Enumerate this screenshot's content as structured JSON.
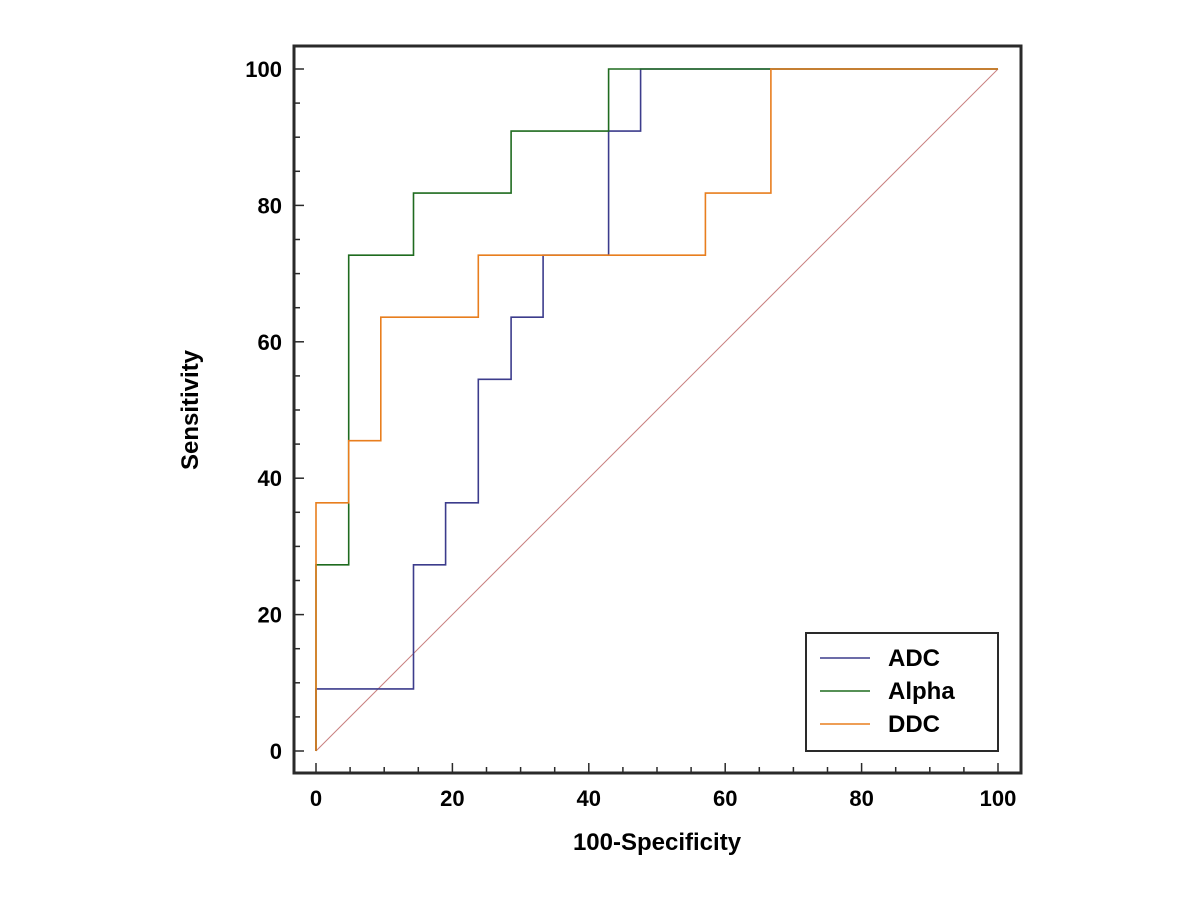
{
  "chart_data": {
    "type": "line",
    "title": "",
    "xlabel": "100-Specificity",
    "ylabel": "Sensitivity",
    "xlim": [
      0,
      100
    ],
    "ylim": [
      0,
      100
    ],
    "xticks": [
      0,
      20,
      40,
      60,
      80,
      100
    ],
    "yticks": [
      0,
      20,
      40,
      60,
      80,
      100
    ],
    "grid": false,
    "legend_position": "bottom-right",
    "reference_line": {
      "name": "chance",
      "color": "#c98080",
      "points": [
        [
          0,
          0
        ],
        [
          100,
          100
        ]
      ]
    },
    "series": [
      {
        "name": "ADC",
        "color": "#3c3c8c",
        "points": [
          [
            0,
            0
          ],
          [
            0,
            9.1
          ],
          [
            14.3,
            9.1
          ],
          [
            14.3,
            27.3
          ],
          [
            19.0,
            27.3
          ],
          [
            19.0,
            36.4
          ],
          [
            23.8,
            36.4
          ],
          [
            23.8,
            54.5
          ],
          [
            28.6,
            54.5
          ],
          [
            28.6,
            63.6
          ],
          [
            33.3,
            63.6
          ],
          [
            33.3,
            72.7
          ],
          [
            42.9,
            72.7
          ],
          [
            42.9,
            90.9
          ],
          [
            47.6,
            90.9
          ],
          [
            47.6,
            100
          ],
          [
            100,
            100
          ]
        ]
      },
      {
        "name": "Alpha",
        "color": "#1f6b1f",
        "points": [
          [
            0,
            0
          ],
          [
            0,
            27.3
          ],
          [
            4.8,
            27.3
          ],
          [
            4.8,
            72.7
          ],
          [
            14.3,
            72.7
          ],
          [
            14.3,
            81.8
          ],
          [
            28.6,
            81.8
          ],
          [
            28.6,
            90.9
          ],
          [
            42.9,
            90.9
          ],
          [
            42.9,
            100
          ],
          [
            100,
            100
          ]
        ]
      },
      {
        "name": "DDC",
        "color": "#e87e1e",
        "points": [
          [
            0,
            0
          ],
          [
            0,
            36.4
          ],
          [
            4.8,
            36.4
          ],
          [
            4.8,
            45.5
          ],
          [
            9.5,
            45.5
          ],
          [
            9.5,
            63.6
          ],
          [
            23.8,
            63.6
          ],
          [
            23.8,
            72.7
          ],
          [
            57.1,
            72.7
          ],
          [
            57.1,
            81.8
          ],
          [
            66.7,
            81.8
          ],
          [
            66.7,
            100
          ],
          [
            100,
            100
          ]
        ]
      }
    ]
  }
}
